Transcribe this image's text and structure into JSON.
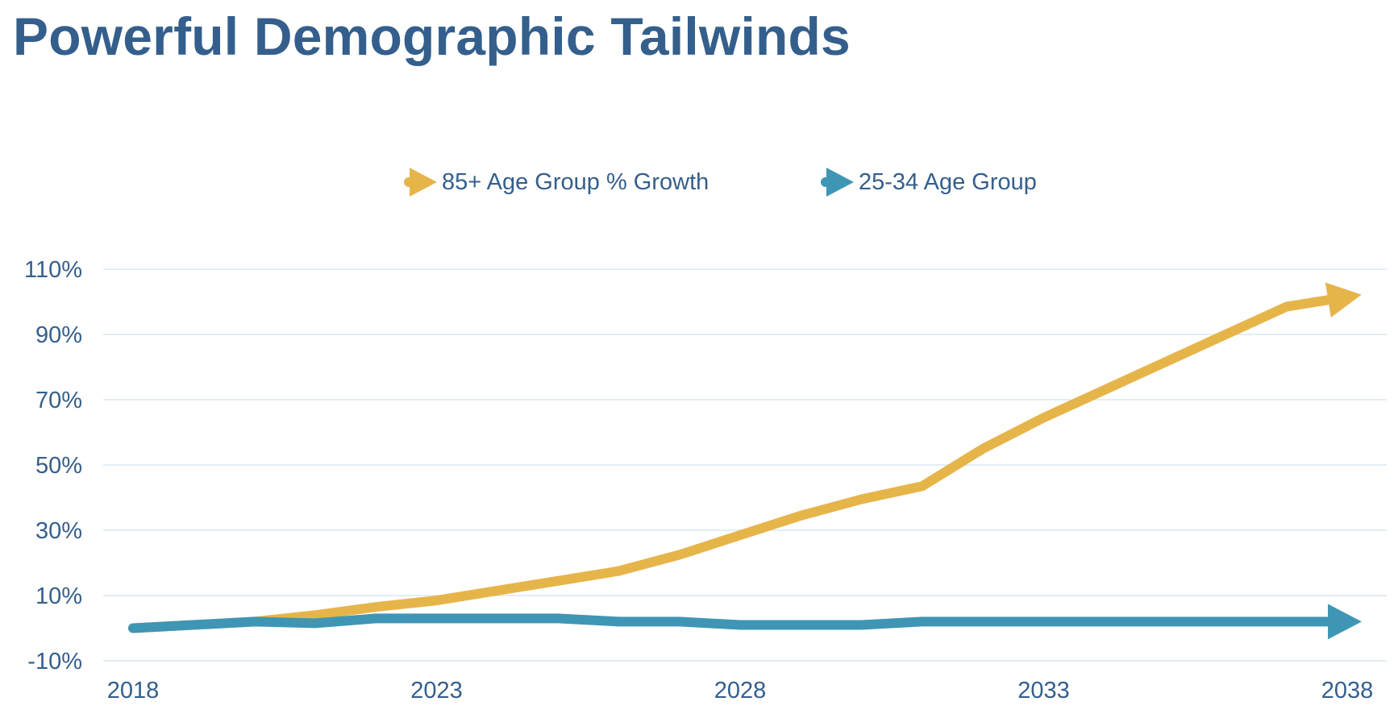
{
  "title": "Powerful Demographic Tailwinds",
  "colors": {
    "title": "#345f8c",
    "text": "#345f8c",
    "grid": "#d9e8f3",
    "series_85plus": "#e6b54a",
    "series_25_34": "#3f96b4"
  },
  "chart_data": {
    "type": "line",
    "title": "",
    "xlabel": "",
    "ylabel": "",
    "legend_position": "top-center",
    "grid": "horizontal",
    "x_ticks": [
      "2018",
      "2023",
      "2028",
      "2033",
      "2038"
    ],
    "y_ticks": [
      "110%",
      "90%",
      "70%",
      "50%",
      "30%",
      "10%",
      "-10%"
    ],
    "y_tick_values": [
      110,
      90,
      70,
      50,
      30,
      10,
      -10
    ],
    "ylim": [
      -10,
      110
    ],
    "xlim": [
      2018,
      2038
    ],
    "series": [
      {
        "name": "85+ Age Group % Growth",
        "color": "#e6b54a",
        "marker": "arrow",
        "x": [
          2018,
          2020,
          2021,
          2022,
          2023,
          2024,
          2025,
          2026,
          2027,
          2028,
          2029,
          2030,
          2031,
          2032,
          2033,
          2034,
          2035,
          2036,
          2037,
          2038
        ],
        "y": [
          0,
          2,
          4,
          6.5,
          8.5,
          11.5,
          14.5,
          17.5,
          22.5,
          28.5,
          34.5,
          39.5,
          43.5,
          55,
          64.5,
          73,
          81.5,
          90,
          98.5,
          101.5
        ]
      },
      {
        "name": "25-34 Age Group",
        "color": "#3f96b4",
        "marker": "arrow",
        "x": [
          2018,
          2020,
          2021,
          2022,
          2023,
          2024,
          2025,
          2026,
          2027,
          2028,
          2029,
          2030,
          2031,
          2032,
          2033,
          2034,
          2035,
          2036,
          2037,
          2038
        ],
        "y": [
          0,
          2,
          1.5,
          3,
          3,
          3,
          3,
          2,
          2,
          1,
          1,
          1,
          2,
          2,
          2,
          2,
          2,
          2,
          2,
          2
        ]
      }
    ]
  }
}
